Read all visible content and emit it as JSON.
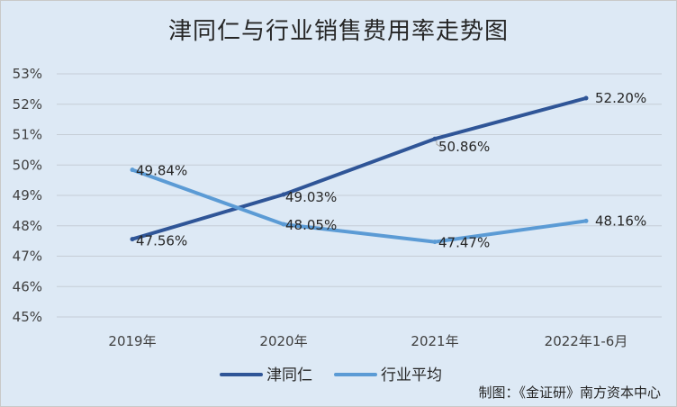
{
  "chart_data": {
    "type": "line",
    "title": "津同仁与行业销售费用率走势图",
    "categories": [
      "2019年",
      "2020年",
      "2021年",
      "2022年1-6月"
    ],
    "ylim": [
      45,
      53
    ],
    "y_ticks": [
      "45%",
      "46%",
      "47%",
      "48%",
      "49%",
      "50%",
      "51%",
      "52%",
      "53%"
    ],
    "grid": true,
    "legend_position": "bottom",
    "series": [
      {
        "name": "津同仁",
        "color": "#2f5597",
        "values": [
          47.56,
          49.03,
          50.86,
          52.2
        ],
        "labels": [
          "47.56%",
          "49.03%",
          "50.86%",
          "52.20%"
        ]
      },
      {
        "name": "行业平均",
        "color": "#5b9bd5",
        "values": [
          49.84,
          48.05,
          47.47,
          48.16
        ],
        "labels": [
          "49.84%",
          "48.05%",
          "47.47%",
          "48.16%"
        ]
      }
    ]
  },
  "credit": "制图：《金证研》南方资本中心"
}
